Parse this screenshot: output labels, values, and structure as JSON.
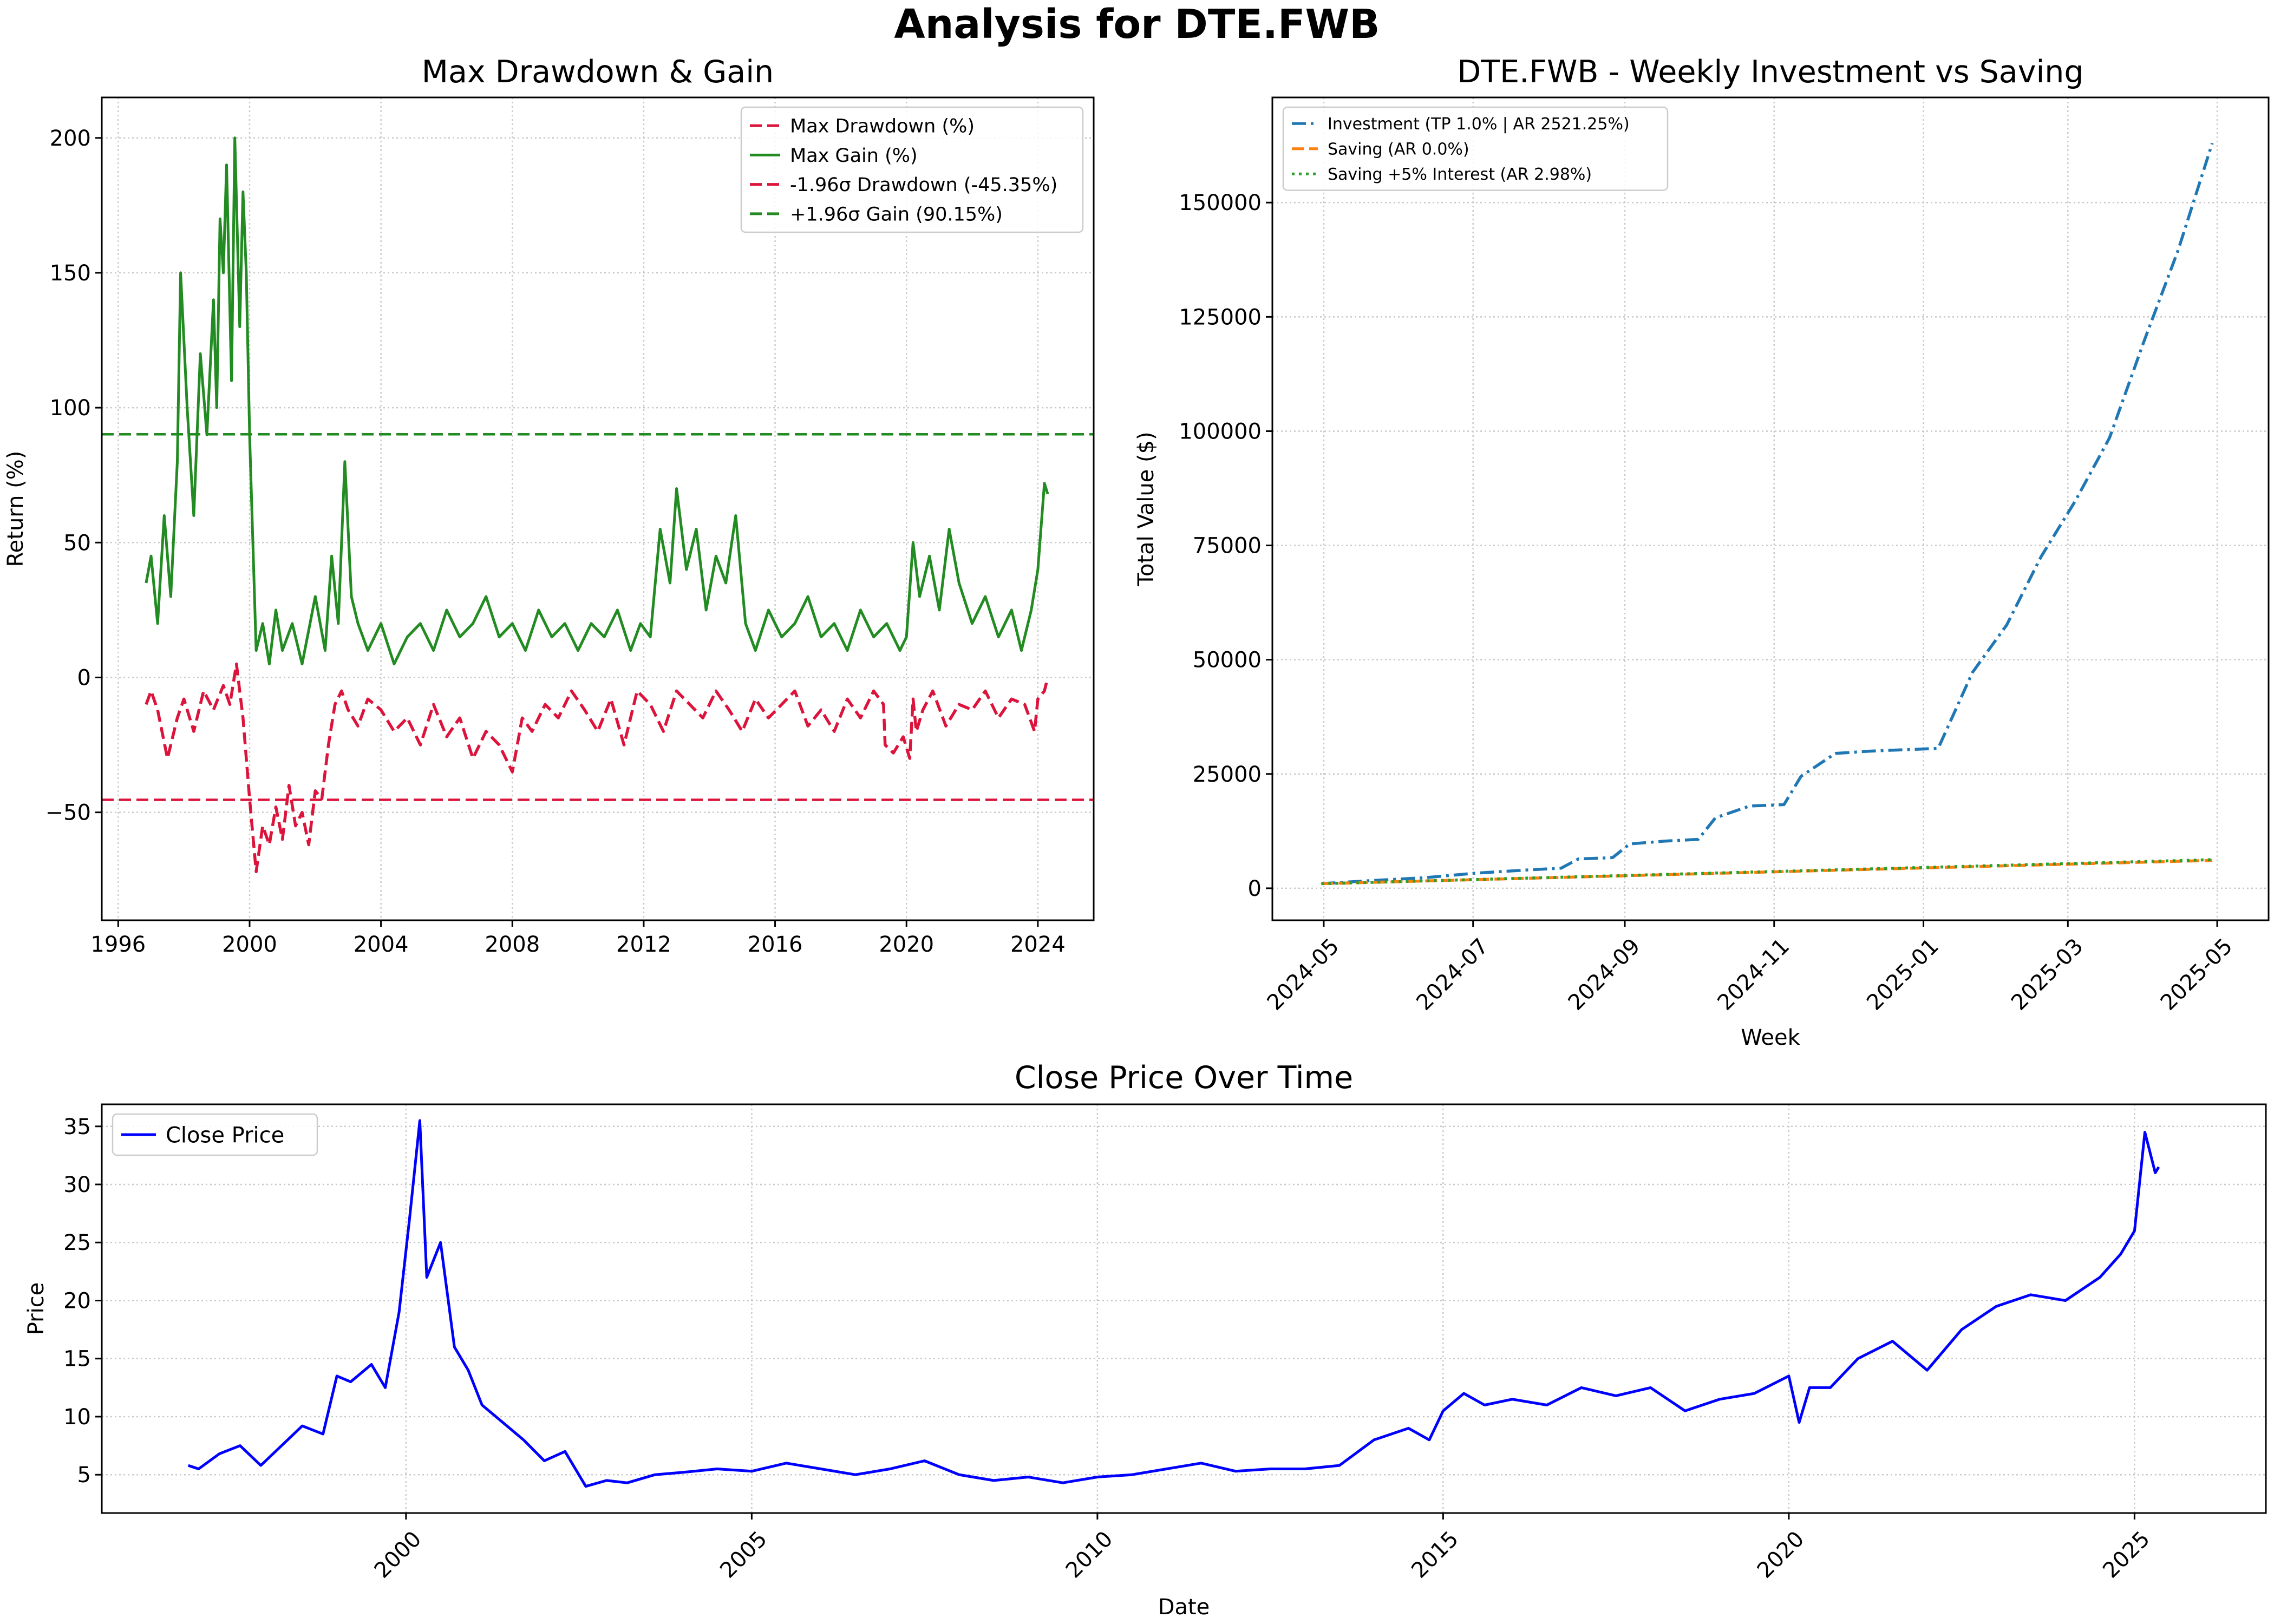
{
  "figure": {
    "title": "Analysis for DTE.FWB"
  },
  "chart_data": [
    {
      "type": "line",
      "title": "Max Drawdown & Gain",
      "xlabel": "",
      "ylabel": "Return (%)",
      "xlim": [
        1995.5,
        2025.7
      ],
      "ylim": [
        -90,
        215
      ],
      "x_ticks": [
        1996,
        2000,
        2004,
        2008,
        2012,
        2016,
        2020,
        2024
      ],
      "x_tick_labels": [
        "1996",
        "2000",
        "2004",
        "2008",
        "2012",
        "2016",
        "2020",
        "2024"
      ],
      "y_ticks": [
        -50,
        0,
        50,
        100,
        150,
        200
      ],
      "y_tick_labels": [
        "−50",
        "0",
        "50",
        "100",
        "150",
        "200"
      ],
      "grid": true,
      "legend_position": "top-right",
      "series": [
        {
          "name": "Max Drawdown (%)",
          "color": "#dc143c",
          "style": "dashed",
          "x": [
            1996.85,
            1997.0,
            1997.2,
            1997.5,
            1997.8,
            1998.0,
            1998.3,
            1998.6,
            1998.9,
            1999.2,
            1999.4,
            1999.6,
            1999.8,
            2000.0,
            2000.2,
            2000.4,
            2000.6,
            2000.8,
            2001.0,
            2001.2,
            2001.4,
            2001.6,
            2001.8,
            2002.0,
            2002.2,
            2002.4,
            2002.6,
            2002.8,
            2003.0,
            2003.3,
            2003.6,
            2004.0,
            2004.4,
            2004.8,
            2005.2,
            2005.6,
            2006.0,
            2006.4,
            2006.8,
            2007.2,
            2007.6,
            2008.0,
            2008.3,
            2008.6,
            2009.0,
            2009.4,
            2009.8,
            2010.2,
            2010.6,
            2011.0,
            2011.4,
            2011.8,
            2012.2,
            2012.6,
            2013.0,
            2013.4,
            2013.8,
            2014.2,
            2014.6,
            2015.0,
            2015.4,
            2015.8,
            2016.2,
            2016.6,
            2017.0,
            2017.4,
            2017.8,
            2018.2,
            2018.6,
            2019.0,
            2019.3,
            2019.35,
            2019.6,
            2019.9,
            2020.1,
            2020.2,
            2020.3,
            2020.5,
            2020.8,
            2021.2,
            2021.6,
            2022.0,
            2022.4,
            2022.8,
            2023.2,
            2023.6,
            2023.9,
            2024.0,
            2024.2,
            2024.3
          ],
          "y": [
            -10,
            -5,
            -12,
            -30,
            -15,
            -8,
            -20,
            -5,
            -12,
            -3,
            -10,
            5,
            -15,
            -45,
            -72,
            -55,
            -62,
            -48,
            -60,
            -40,
            -55,
            -50,
            -62,
            -42,
            -45,
            -25,
            -10,
            -5,
            -12,
            -18,
            -8,
            -12,
            -20,
            -15,
            -25,
            -10,
            -22,
            -15,
            -30,
            -20,
            -25,
            -35,
            -15,
            -20,
            -10,
            -15,
            -5,
            -12,
            -20,
            -8,
            -25,
            -5,
            -10,
            -20,
            -5,
            -10,
            -15,
            -5,
            -12,
            -20,
            -8,
            -15,
            -10,
            -5,
            -18,
            -12,
            -20,
            -8,
            -15,
            -5,
            -10,
            -25,
            -28,
            -22,
            -30,
            -8,
            -20,
            -12,
            -5,
            -18,
            -10,
            -12,
            -5,
            -15,
            -8,
            -10,
            -20,
            -8,
            -5,
            0
          ]
        },
        {
          "name": "Max Gain (%)",
          "color": "#228b22",
          "style": "solid",
          "x": [
            1996.85,
            1997.0,
            1997.2,
            1997.4,
            1997.6,
            1997.8,
            1997.9,
            1998.1,
            1998.3,
            1998.5,
            1998.7,
            1998.9,
            1999.0,
            1999.1,
            1999.2,
            1999.3,
            1999.45,
            1999.55,
            1999.7,
            1999.8,
            1999.9,
            2000.0,
            2000.2,
            2000.4,
            2000.6,
            2000.8,
            2001.0,
            2001.3,
            2001.6,
            2002.0,
            2002.3,
            2002.5,
            2002.7,
            2002.9,
            2003.1,
            2003.3,
            2003.6,
            2004.0,
            2004.4,
            2004.8,
            2005.2,
            2005.6,
            2006.0,
            2006.4,
            2006.8,
            2007.2,
            2007.6,
            2008.0,
            2008.4,
            2008.8,
            2009.2,
            2009.6,
            2010.0,
            2010.4,
            2010.8,
            2011.2,
            2011.6,
            2011.9,
            2012.2,
            2012.5,
            2012.8,
            2013.0,
            2013.3,
            2013.6,
            2013.9,
            2014.2,
            2014.5,
            2014.8,
            2015.1,
            2015.4,
            2015.8,
            2016.2,
            2016.6,
            2017.0,
            2017.4,
            2017.8,
            2018.2,
            2018.6,
            2019.0,
            2019.4,
            2019.8,
            2020.0,
            2020.2,
            2020.4,
            2020.7,
            2021.0,
            2021.3,
            2021.6,
            2022.0,
            2022.4,
            2022.8,
            2023.2,
            2023.5,
            2023.8,
            2024.0,
            2024.2,
            2024.3
          ],
          "y": [
            35,
            45,
            20,
            60,
            30,
            80,
            150,
            100,
            60,
            120,
            90,
            140,
            100,
            170,
            150,
            190,
            110,
            200,
            130,
            180,
            150,
            90,
            10,
            20,
            5,
            25,
            10,
            20,
            5,
            30,
            10,
            45,
            20,
            80,
            30,
            20,
            10,
            20,
            5,
            15,
            20,
            10,
            25,
            15,
            20,
            30,
            15,
            20,
            10,
            25,
            15,
            20,
            10,
            20,
            15,
            25,
            10,
            20,
            15,
            55,
            35,
            70,
            40,
            55,
            25,
            45,
            35,
            60,
            20,
            10,
            25,
            15,
            20,
            30,
            15,
            20,
            10,
            25,
            15,
            20,
            10,
            15,
            50,
            30,
            45,
            25,
            55,
            35,
            20,
            30,
            15,
            25,
            10,
            25,
            40,
            72,
            68
          ]
        },
        {
          "name": "-1.96σ Drawdown (-45.35%)",
          "color": "#dc143c",
          "style": "dashed",
          "type": "hline",
          "value": -45.35
        },
        {
          "name": "+1.96σ Gain (90.15%)",
          "color": "#228b22",
          "style": "dashed",
          "type": "hline",
          "value": 90.15
        }
      ]
    },
    {
      "type": "line",
      "title": "DTE.FWB - Weekly Investment vs Saving",
      "xlabel": "Week",
      "ylabel": "Total Value ($)",
      "xlim": [
        "2024-04-10",
        "2025-05-22"
      ],
      "ylim": [
        -7000,
        173000
      ],
      "x_ticks": [
        "2024-05-01",
        "2024-07-01",
        "2024-09-01",
        "2024-11-01",
        "2025-01-01",
        "2025-03-01",
        "2025-05-01"
      ],
      "x_tick_labels": [
        "2024-05",
        "2024-07",
        "2024-09",
        "2024-11",
        "2025-01",
        "2025-03",
        "2025-05"
      ],
      "y_ticks": [
        0,
        25000,
        50000,
        75000,
        100000,
        125000,
        150000
      ],
      "y_tick_labels": [
        "0",
        "25000",
        "50000",
        "75000",
        "100000",
        "125000",
        "150000"
      ],
      "grid": true,
      "legend_position": "top-left",
      "series": [
        {
          "name": "Investment (TP 1.0% | AR 2521.25%)",
          "color": "#1f77b4",
          "style": "dashdot",
          "x": [
            "2024-04-30",
            "2024-05-21",
            "2024-06-11",
            "2024-07-02",
            "2024-07-23",
            "2024-08-06",
            "2024-08-13",
            "2024-08-27",
            "2024-09-03",
            "2024-09-17",
            "2024-10-01",
            "2024-10-08",
            "2024-10-22",
            "2024-11-05",
            "2024-11-12",
            "2024-11-26",
            "2024-12-10",
            "2024-12-24",
            "2025-01-07",
            "2025-01-21",
            "2025-02-04",
            "2025-02-18",
            "2025-03-04",
            "2025-03-18",
            "2025-04-01",
            "2025-04-15",
            "2025-04-29"
          ],
          "y": [
            1000,
            1700,
            2300,
            3300,
            4000,
            4400,
            6400,
            6700,
            9700,
            10300,
            10700,
            15400,
            18000,
            18300,
            24500,
            29500,
            30000,
            30300,
            30600,
            47200,
            57600,
            72500,
            84700,
            98500,
            119500,
            139500,
            163000
          ]
        },
        {
          "name": "Saving (AR 0.0%)",
          "color": "#ff7f0e",
          "style": "dashed",
          "x": [
            "2024-04-30",
            "2025-04-29"
          ],
          "y": [
            1000,
            6100
          ]
        },
        {
          "name": "Saving +5% Interest (AR 2.98%)",
          "color": "#2ca02c",
          "style": "dotted",
          "x": [
            "2024-04-30",
            "2025-04-29"
          ],
          "y": [
            1000,
            6250
          ]
        }
      ]
    },
    {
      "type": "line",
      "title": "Close Price Over Time",
      "xlabel": "Date",
      "ylabel": "Price",
      "xlim": [
        1995.6,
        2026.9
      ],
      "ylim": [
        1.7,
        36.9
      ],
      "x_ticks": [
        2000,
        2005,
        2010,
        2015,
        2020,
        2025
      ],
      "x_tick_labels": [
        "2000",
        "2005",
        "2010",
        "2015",
        "2020",
        "2025"
      ],
      "y_ticks": [
        5,
        10,
        15,
        20,
        25,
        30,
        35
      ],
      "y_tick_labels": [
        "5",
        "10",
        "15",
        "20",
        "25",
        "30",
        "35"
      ],
      "grid": true,
      "legend_position": "top-left",
      "series": [
        {
          "name": "Close Price",
          "color": "#0000ff",
          "style": "solid",
          "x": [
            1996.85,
            1997.0,
            1997.3,
            1997.6,
            1997.9,
            1998.2,
            1998.5,
            1998.8,
            1999.0,
            1999.2,
            1999.5,
            1999.7,
            1999.9,
            2000.05,
            2000.2,
            2000.3,
            2000.5,
            2000.7,
            2000.9,
            2001.1,
            2001.4,
            2001.7,
            2002.0,
            2002.3,
            2002.6,
            2002.9,
            2003.2,
            2003.6,
            2004.0,
            2004.5,
            2005.0,
            2005.5,
            2006.0,
            2006.5,
            2007.0,
            2007.5,
            2008.0,
            2008.5,
            2009.0,
            2009.5,
            2010.0,
            2010.5,
            2011.0,
            2011.5,
            2012.0,
            2012.5,
            2013.0,
            2013.5,
            2014.0,
            2014.5,
            2014.8,
            2015.0,
            2015.3,
            2015.6,
            2016.0,
            2016.5,
            2017.0,
            2017.5,
            2018.0,
            2018.5,
            2019.0,
            2019.5,
            2020.0,
            2020.15,
            2020.3,
            2020.6,
            2021.0,
            2021.5,
            2022.0,
            2022.5,
            2023.0,
            2023.5,
            2024.0,
            2024.5,
            2024.8,
            2025.0,
            2025.15,
            2025.3,
            2025.35
          ],
          "y": [
            5.8,
            5.5,
            6.8,
            7.5,
            5.8,
            7.5,
            9.2,
            8.5,
            13.5,
            13.0,
            14.5,
            12.5,
            19.0,
            27.0,
            35.5,
            22.0,
            25.0,
            16.0,
            14.0,
            11.0,
            9.5,
            8.0,
            6.2,
            7.0,
            4.0,
            4.5,
            4.3,
            5.0,
            5.2,
            5.5,
            5.3,
            6.0,
            5.5,
            5.0,
            5.5,
            6.2,
            5.0,
            4.5,
            4.8,
            4.3,
            4.8,
            5.0,
            5.5,
            6.0,
            5.3,
            5.5,
            5.5,
            5.8,
            8.0,
            9.0,
            8.0,
            10.5,
            12.0,
            11.0,
            11.5,
            11.0,
            12.5,
            11.8,
            12.5,
            10.5,
            11.5,
            12.0,
            13.5,
            9.5,
            12.5,
            12.5,
            15.0,
            16.5,
            14.0,
            17.5,
            19.5,
            20.5,
            20.0,
            22.0,
            24.0,
            26.0,
            34.5,
            31.0,
            31.5
          ]
        }
      ]
    }
  ]
}
